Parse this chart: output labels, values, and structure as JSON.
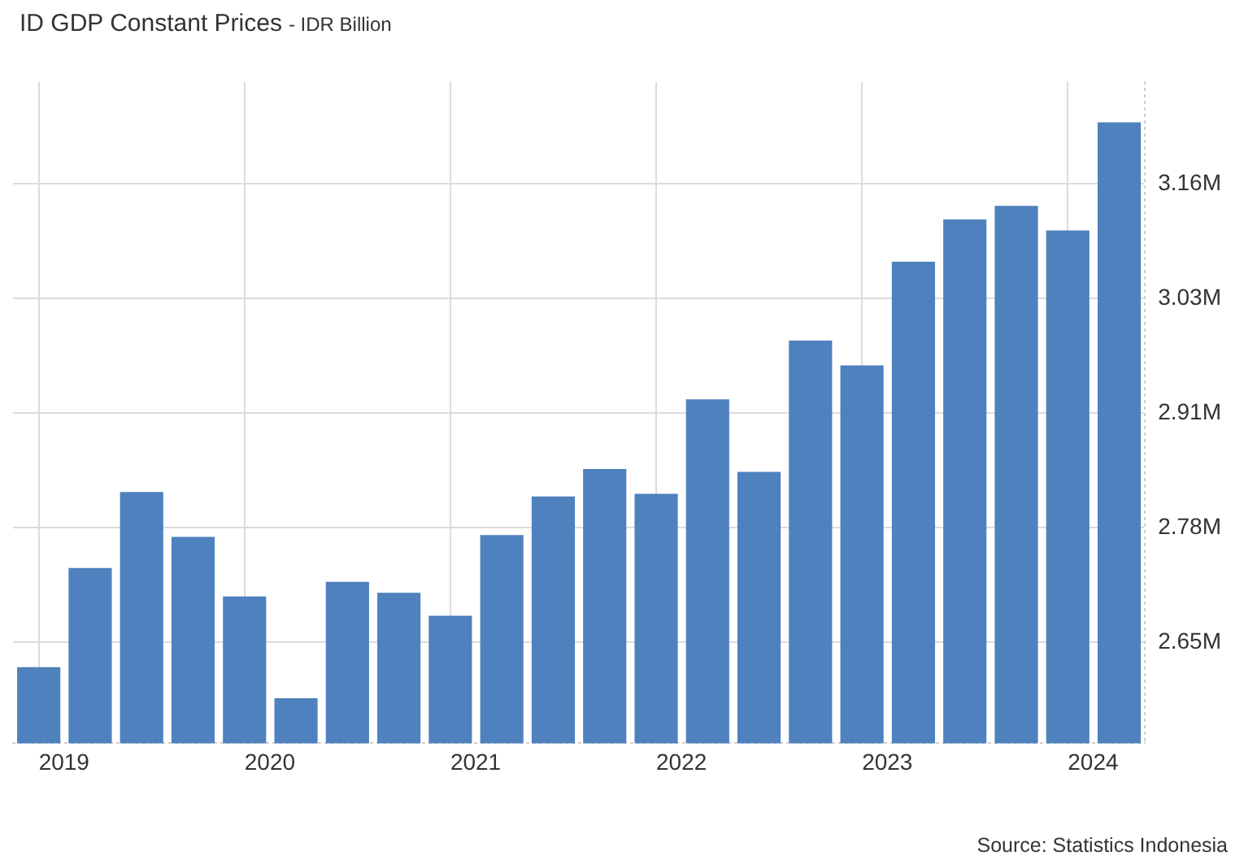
{
  "chart_data": {
    "type": "bar",
    "title": "ID GDP Constant Prices",
    "subtitle": "- IDR Billion",
    "categories": [
      "2019",
      null,
      null,
      null,
      "2020",
      null,
      null,
      null,
      "2021",
      null,
      null,
      null,
      "2022",
      null,
      null,
      null,
      "2023",
      null,
      null,
      null,
      "2024",
      null
    ],
    "values": [
      2.628,
      2.736,
      2.819,
      2.77,
      2.705,
      2.594,
      2.721,
      2.709,
      2.684,
      2.772,
      2.814,
      2.844,
      2.817,
      2.92,
      2.841,
      2.984,
      2.957,
      3.07,
      3.116,
      3.131,
      3.104,
      3.222
    ],
    "color": "#4e81bd",
    "ylim": [
      2.545,
      3.266
    ],
    "yticks": [
      {
        "value": 2.655,
        "label": "2.65M"
      },
      {
        "value": 2.78,
        "label": "2.78M"
      },
      {
        "value": 2.905,
        "label": "2.91M"
      },
      {
        "value": 3.03,
        "label": "3.03M"
      },
      {
        "value": 3.155,
        "label": "3.16M"
      }
    ],
    "grid": true,
    "annotations": [
      "Source: Statistics Indonesia"
    ]
  }
}
